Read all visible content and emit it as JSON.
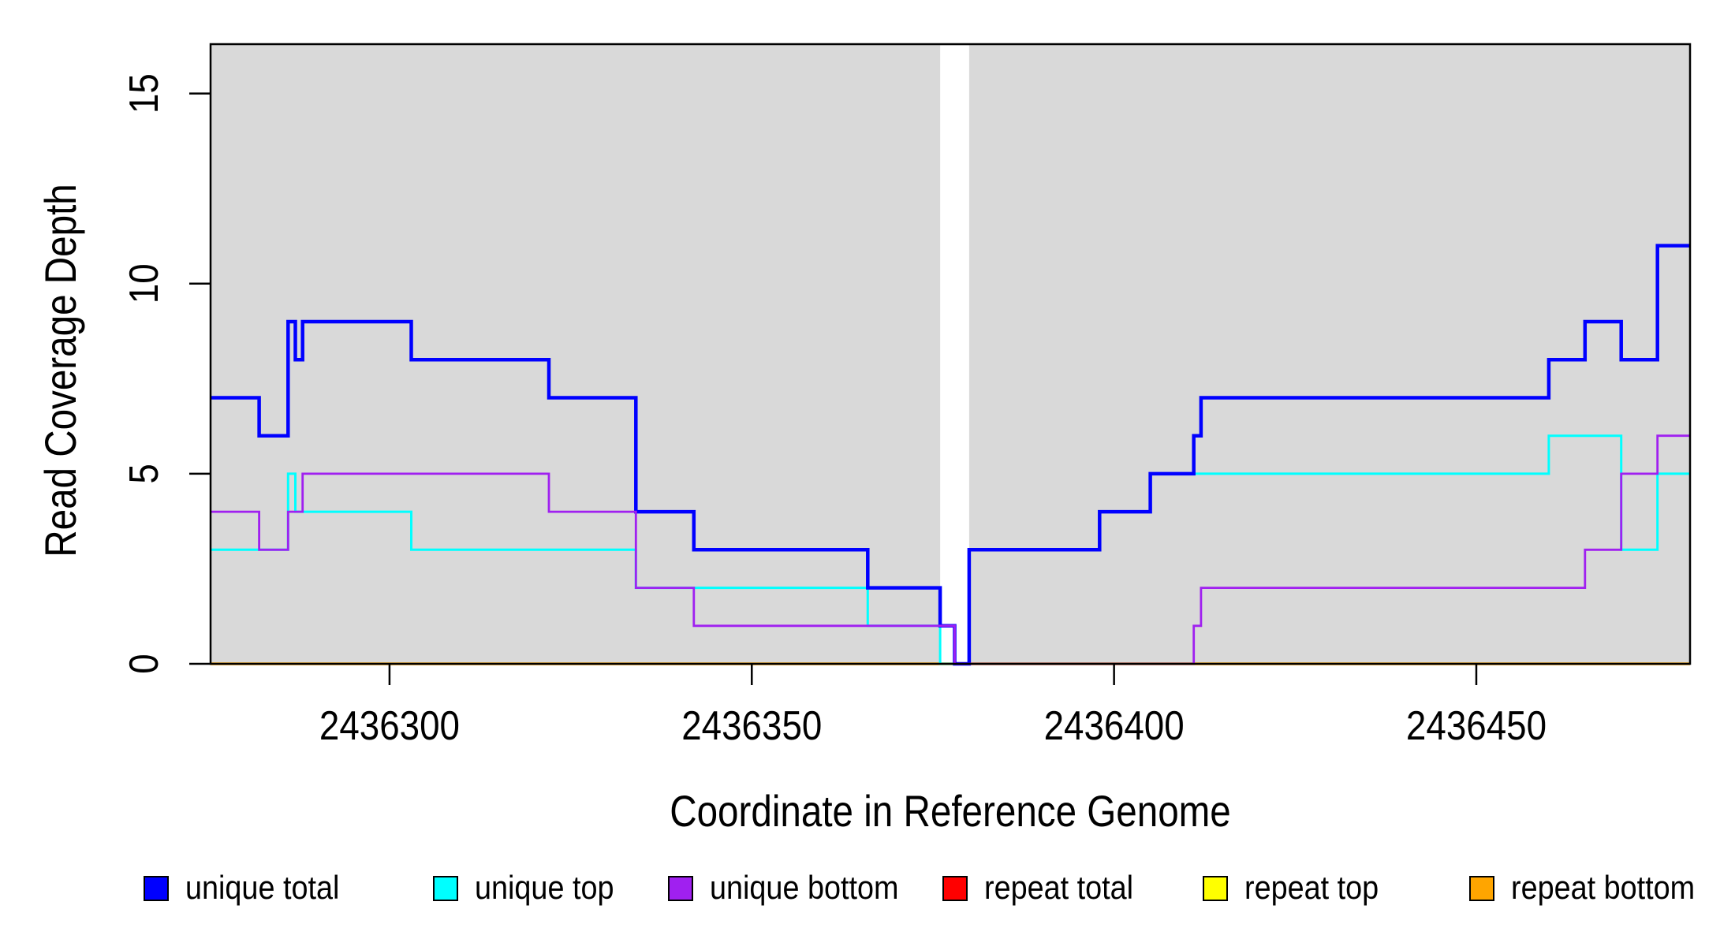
{
  "chart_data": {
    "type": "line",
    "step_style": true,
    "title": "",
    "xlabel": "Coordinate in Reference Genome",
    "ylabel": "Read Coverage Depth",
    "xlim": [
      2436275.3,
      2436479.5
    ],
    "ylim": [
      0,
      16.3
    ],
    "x_ticks": [
      2436300,
      2436350,
      2436400,
      2436450
    ],
    "x_tick_labels": [
      "2436300",
      "2436350",
      "2436400",
      "2436450"
    ],
    "y_ticks": [
      0,
      5,
      10,
      15
    ],
    "y_tick_labels": [
      "0",
      "5",
      "10",
      "15"
    ],
    "grid": false,
    "panel_background": "#D9D9D9",
    "page_background": "#FFFFFF",
    "axis_color": "#000000",
    "no_coverage_gap": {
      "x_start": 2436376,
      "x_end": 2436380,
      "color": "#FFFFFF"
    },
    "series": [
      {
        "name": "unique total",
        "color": "#0000FF",
        "line_width": 4.5,
        "steps": [
          [
            2436275.3,
            7
          ],
          [
            2436282,
            6
          ],
          [
            2436286,
            9
          ],
          [
            2436287,
            8
          ],
          [
            2436288,
            9
          ],
          [
            2436303,
            8
          ],
          [
            2436322,
            7
          ],
          [
            2436334,
            4
          ],
          [
            2436342,
            3
          ],
          [
            2436366,
            2
          ],
          [
            2436376,
            1
          ],
          [
            2436378,
            0
          ],
          [
            2436380,
            3
          ],
          [
            2436398,
            4
          ],
          [
            2436405,
            5
          ],
          [
            2436411,
            6
          ],
          [
            2436412,
            7
          ],
          [
            2436460,
            8
          ],
          [
            2436465,
            9
          ],
          [
            2436470,
            8
          ],
          [
            2436475,
            11
          ]
        ]
      },
      {
        "name": "unique top",
        "color": "#00FFFF",
        "line_width": 3,
        "steps": [
          [
            2436275.3,
            3
          ],
          [
            2436286,
            5
          ],
          [
            2436287,
            4
          ],
          [
            2436303,
            3
          ],
          [
            2436334,
            2
          ],
          [
            2436366,
            1
          ],
          [
            2436376,
            0
          ],
          [
            2436380,
            3
          ],
          [
            2436398,
            4
          ],
          [
            2436405,
            5
          ],
          [
            2436460,
            6
          ],
          [
            2436470,
            3
          ],
          [
            2436475,
            5
          ]
        ]
      },
      {
        "name": "unique bottom",
        "color": "#A020F0",
        "line_width": 2.8,
        "steps": [
          [
            2436275.3,
            4
          ],
          [
            2436282,
            3
          ],
          [
            2436286,
            4
          ],
          [
            2436288,
            5
          ],
          [
            2436322,
            4
          ],
          [
            2436334,
            2
          ],
          [
            2436342,
            1
          ],
          [
            2436378,
            0
          ],
          [
            2436411,
            1
          ],
          [
            2436412,
            2
          ],
          [
            2436465,
            3
          ],
          [
            2436470,
            5
          ],
          [
            2436475,
            6
          ]
        ]
      },
      {
        "name": "repeat total",
        "color": "#FF0000",
        "line_width": 3,
        "steps": [
          [
            2436275.3,
            0
          ]
        ]
      },
      {
        "name": "repeat top",
        "color": "#FFFF00",
        "line_width": 3,
        "steps": [
          [
            2436275.3,
            0
          ]
        ]
      },
      {
        "name": "repeat bottom",
        "color": "#FFA500",
        "line_width": 3.5,
        "steps": [
          [
            2436275.3,
            0
          ]
        ]
      }
    ],
    "draw_order": [
      "repeat total",
      "repeat top",
      "repeat bottom",
      "unique top",
      "unique total",
      "unique bottom"
    ],
    "legend": {
      "position": "bottom",
      "items": [
        "unique total",
        "unique top",
        "unique bottom",
        "repeat total",
        "repeat top",
        "repeat bottom"
      ]
    }
  },
  "layout_note": "R-style step coverage plot on gray panel with white no-coverage band"
}
